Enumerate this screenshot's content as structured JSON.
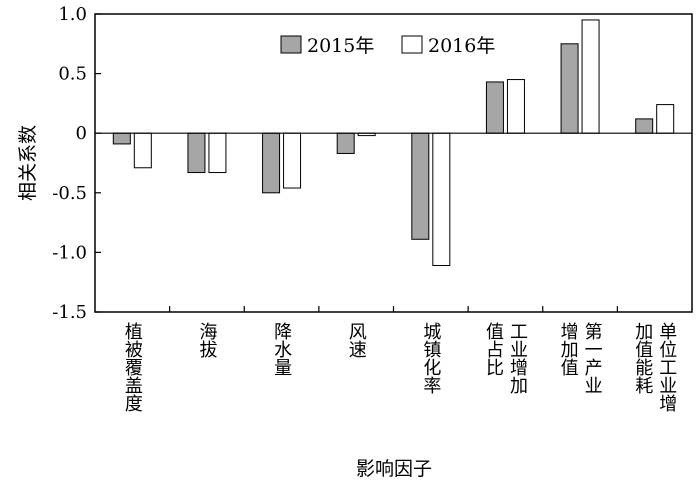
{
  "chart_data": {
    "type": "bar",
    "title": "",
    "xlabel": "影响因子",
    "ylabel": "相关系数",
    "ylim": [
      -1.5,
      1.0
    ],
    "yticks": [
      1.0,
      0.5,
      0,
      -0.5,
      -1.0,
      -1.5
    ],
    "ytick_labels": [
      "1.0",
      "0.5",
      "0",
      "-0.5",
      "-1.0",
      "-1.5"
    ],
    "grid": false,
    "legend_position": "top-center",
    "categories": [
      "植被覆盖度",
      "海拔",
      "降水量",
      "风速",
      "城镇化率",
      "工业增加值占比",
      "第一产业增加值",
      "单位工业增加值能耗"
    ],
    "category_label_lines": [
      [
        "植被覆盖度"
      ],
      [
        "海拔"
      ],
      [
        "降水量"
      ],
      [
        "风速"
      ],
      [
        "城镇化率"
      ],
      [
        "工业增加",
        "值占比"
      ],
      [
        "第一产业",
        "增加值"
      ],
      [
        "单位工业增",
        "加值能耗"
      ]
    ],
    "series": [
      {
        "name": "2015年",
        "color": "#a6a6a6",
        "values": [
          -0.09,
          -0.33,
          -0.5,
          -0.17,
          -0.89,
          0.43,
          0.75,
          0.12
        ]
      },
      {
        "name": "2016年",
        "color": "#ffffff",
        "values": [
          -0.29,
          -0.33,
          -0.46,
          -0.02,
          -1.11,
          0.45,
          0.95,
          0.24
        ]
      }
    ]
  }
}
